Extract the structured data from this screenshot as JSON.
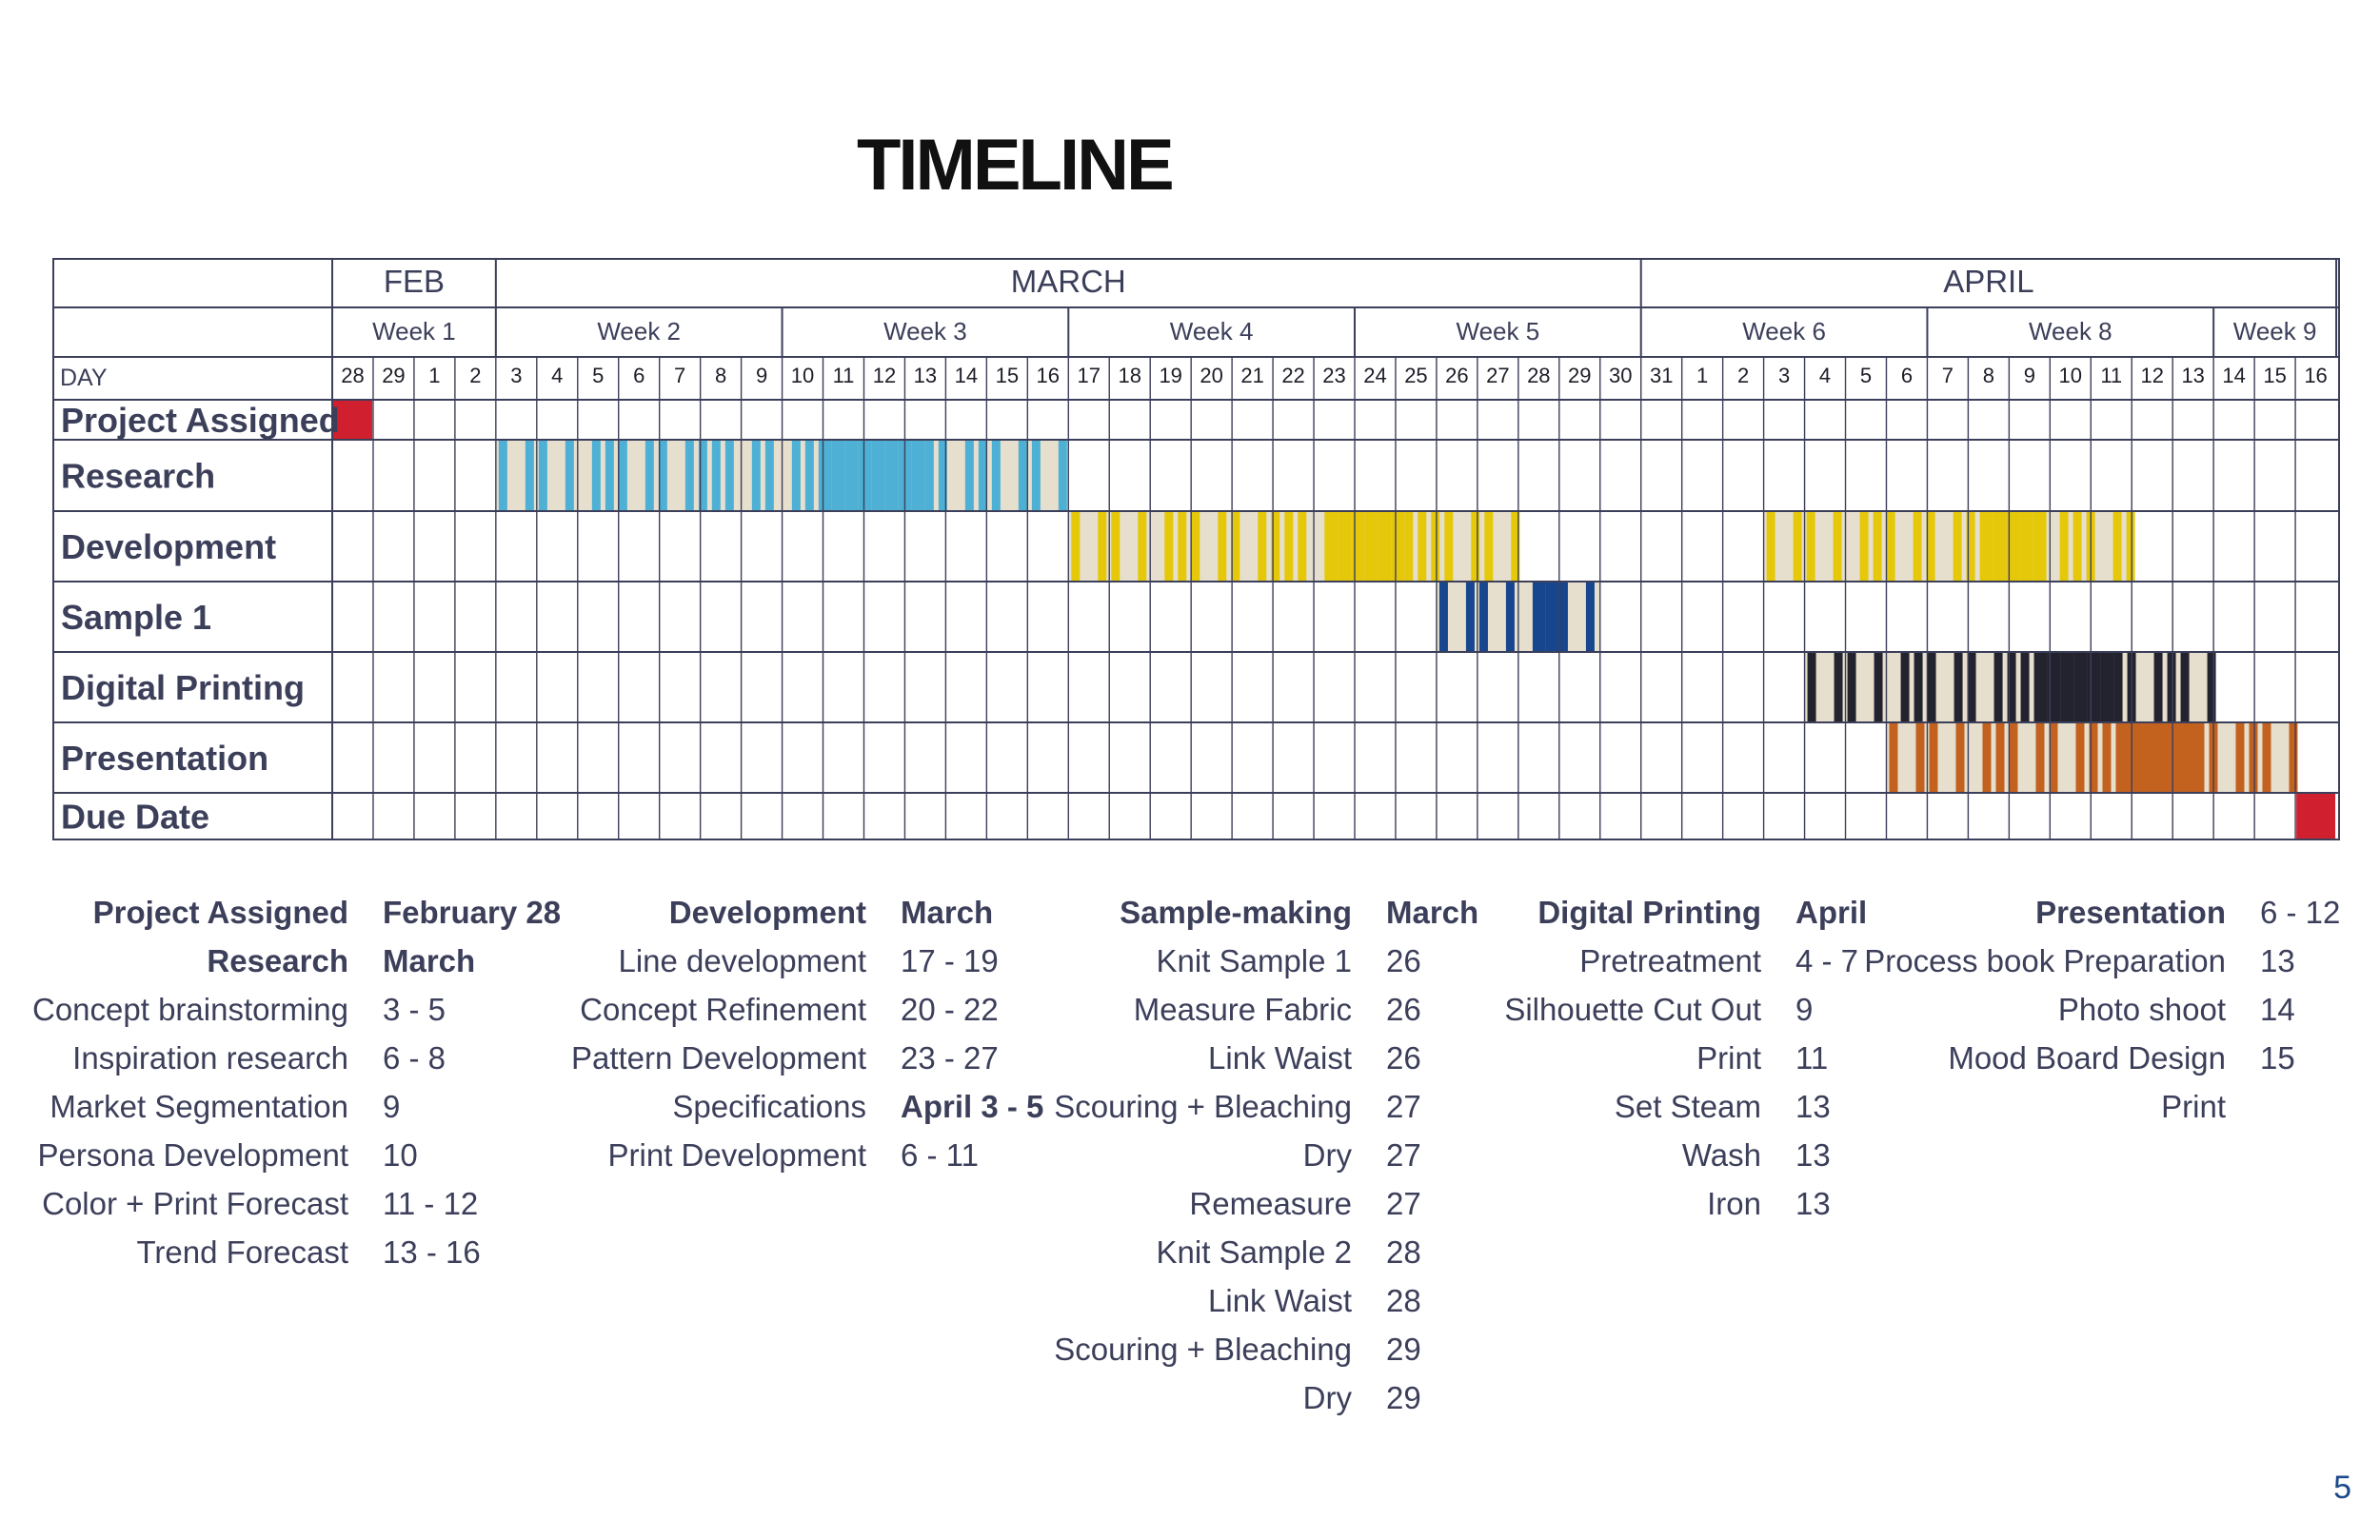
{
  "title": "TIMELINE",
  "page_number": "5",
  "timeline": {
    "months": [
      "FEB",
      "MARCH",
      "APRIL"
    ],
    "weeks": [
      "Week 1",
      "Week 2",
      "Week 3",
      "Week 4",
      "Week 5",
      "Week 6",
      "Week 8",
      "Week 9"
    ],
    "day_label": "DAY",
    "days": [
      "28",
      "29",
      "1",
      "2",
      "3",
      "4",
      "5",
      "6",
      "7",
      "8",
      "9",
      "10",
      "11",
      "12",
      "13",
      "14",
      "15",
      "16",
      "17",
      "18",
      "19",
      "20",
      "21",
      "22",
      "23",
      "24",
      "25",
      "26",
      "27",
      "28",
      "29",
      "30",
      "31",
      "1",
      "2",
      "3",
      "4",
      "5",
      "6",
      "7",
      "8",
      "9",
      "10",
      "11",
      "12",
      "13",
      "14",
      "15",
      "16"
    ],
    "colors": {
      "red": "#d0202f",
      "blue": "#4eb0d4",
      "yellow": "#e6c80a",
      "navy": "#17468e",
      "black": "#23232f",
      "orange": "#c3611f",
      "beige": "#e6dfcd",
      "grid": "#3c3f5a"
    },
    "tasks": [
      {
        "name": "Project Assigned",
        "bars": [
          {
            "start": "Feb 28",
            "end": "Feb 28",
            "color": "red",
            "style": "solid"
          }
        ]
      },
      {
        "name": "Research",
        "bars": [
          {
            "start": "Mar 3",
            "end": "Mar 16",
            "color": "blue",
            "style": "striped"
          }
        ]
      },
      {
        "name": "Development",
        "bars": [
          {
            "start": "Mar 17",
            "end": "Mar 27",
            "color": "yellow",
            "style": "striped"
          },
          {
            "start": "Apr 3",
            "end": "Apr 11",
            "color": "yellow",
            "style": "striped"
          }
        ]
      },
      {
        "name": "Sample 1",
        "bars": [
          {
            "start": "Mar 26",
            "end": "Mar 29",
            "color": "navy",
            "style": "striped"
          }
        ]
      },
      {
        "name": "Digital Printing",
        "bars": [
          {
            "start": "Apr 4",
            "end": "Apr 13",
            "color": "black",
            "style": "striped"
          }
        ]
      },
      {
        "name": "Presentation",
        "bars": [
          {
            "start": "Apr 6",
            "end": "Apr 15",
            "color": "orange",
            "style": "striped"
          }
        ]
      },
      {
        "name": "Due Date",
        "bars": [
          {
            "start": "Apr 16",
            "end": "Apr 16",
            "color": "red",
            "style": "solid"
          }
        ]
      }
    ]
  },
  "legend": [
    {
      "items": [
        {
          "label": "Project  Assigned",
          "value": "February 28",
          "bold": true
        },
        {
          "label": "Research",
          "value": "March",
          "bold": true
        },
        {
          "label": "Concept brainstorming",
          "value": "3 - 5"
        },
        {
          "label": "Inspiration research",
          "value": "6 - 8"
        },
        {
          "label": "Market Segmentation",
          "value": "9"
        },
        {
          "label": "Persona Development",
          "value": "10"
        },
        {
          "label": "Color + Print  Forecast",
          "value": "11 - 12"
        },
        {
          "label": "Trend Forecast",
          "value": "13 - 16"
        }
      ]
    },
    {
      "items": [
        {
          "label": "Development",
          "value": "March",
          "bold": true
        },
        {
          "label": "Line development",
          "value": "17 - 19"
        },
        {
          "label": "Concept Refinement",
          "value": "20 - 22"
        },
        {
          "label": "Pattern Development",
          "value": "23 - 27"
        },
        {
          "label": "Specifications",
          "value": "April 3 - 5",
          "value_bold": true
        },
        {
          "label": "Print Development",
          "value": "6 - 11"
        }
      ]
    },
    {
      "items": [
        {
          "label": "Sample-making",
          "value": "March",
          "bold": true
        },
        {
          "label": "Knit Sample 1",
          "value": "26"
        },
        {
          "label": "Measure Fabric",
          "value": "26"
        },
        {
          "label": "Link Waist",
          "value": "26"
        },
        {
          "label": "Scouring + Bleaching",
          "value": "27"
        },
        {
          "label": "Dry",
          "value": "27"
        },
        {
          "label": "Remeasure",
          "value": "27"
        },
        {
          "label": "Knit Sample 2",
          "value": "28"
        },
        {
          "label": "Link Waist",
          "value": "28"
        },
        {
          "label": "Scouring + Bleaching",
          "value": "29"
        },
        {
          "label": "Dry",
          "value": "29"
        }
      ]
    },
    {
      "items": [
        {
          "label": "Digital Printing",
          "value": "April",
          "bold": true
        },
        {
          "label": "Pretreatment",
          "value": "4 - 7"
        },
        {
          "label": "Silhouette Cut Out",
          "value": "9"
        },
        {
          "label": "Print",
          "value": "11"
        },
        {
          "label": "Set Steam",
          "value": "13"
        },
        {
          "label": "Wash",
          "value": "13"
        },
        {
          "label": "Iron",
          "value": "13"
        }
      ]
    },
    {
      "items": [
        {
          "label": "Presentation",
          "value": "6 - 12",
          "bold": true,
          "value_bold": false
        },
        {
          "label": "Process book Preparation",
          "value": "13"
        },
        {
          "label": "Photo shoot",
          "value": "14"
        },
        {
          "label": "Mood Board Design",
          "value": "15"
        },
        {
          "label": "Print",
          "value": ""
        }
      ]
    }
  ]
}
